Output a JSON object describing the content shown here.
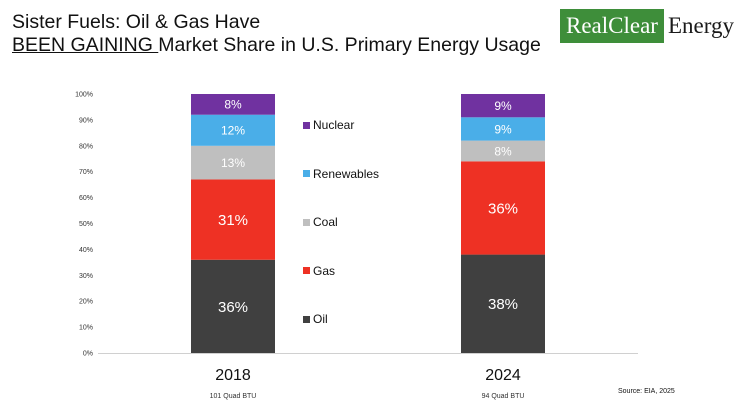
{
  "title": {
    "line1": "Sister Fuels: Oil & Gas Have",
    "line2_underlined": "BEEN GAINING ",
    "line2_rest": "Market Share in U.S. Primary Energy Usage"
  },
  "logo": {
    "part1": "RealClear",
    "part2": "Energy"
  },
  "source": "Source: EIA, 2025",
  "colors": {
    "oil": "#404040",
    "gas": "#ee3124",
    "coal": "#bfbfbf",
    "renewables": "#4aaee8",
    "nuclear": "#7032a0",
    "logo_green": "#3e8e3a"
  },
  "chart_data": {
    "type": "bar",
    "stacked": true,
    "categories": [
      "2018",
      "2024"
    ],
    "category_sublabels": [
      "101 Quad BTU",
      "94 Quad BTU"
    ],
    "series": [
      {
        "name": "Oil",
        "values": [
          36,
          38
        ],
        "labels": [
          "36%",
          "38%"
        ]
      },
      {
        "name": "Gas",
        "values": [
          31,
          36
        ],
        "labels": [
          "31%",
          "36%"
        ]
      },
      {
        "name": "Coal",
        "values": [
          13,
          8
        ],
        "labels": [
          "13%",
          "8%"
        ]
      },
      {
        "name": "Renewables",
        "values": [
          12,
          9
        ],
        "labels": [
          "12%",
          "9%"
        ]
      },
      {
        "name": "Nuclear",
        "values": [
          8,
          9
        ],
        "labels": [
          "8%",
          "9%"
        ]
      }
    ],
    "legend_order": [
      "Nuclear",
      "Renewables",
      "Coal",
      "Gas",
      "Oil"
    ],
    "ylim": [
      0,
      100
    ],
    "yticks": [
      "0%",
      "10%",
      "20%",
      "30%",
      "40%",
      "50%",
      "60%",
      "70%",
      "80%",
      "90%",
      "100%"
    ],
    "grid": false,
    "legend_position": "center"
  }
}
